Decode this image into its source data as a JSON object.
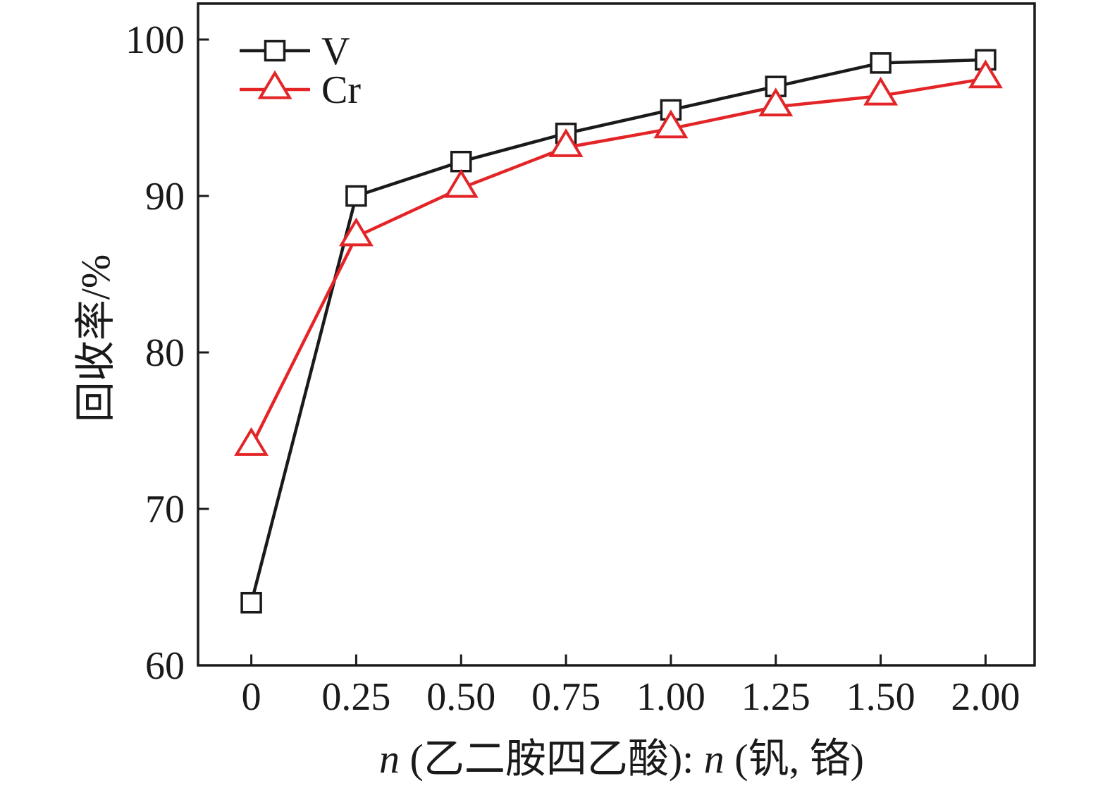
{
  "page": {
    "background": "#ffffff"
  },
  "chart_data": {
    "type": "line",
    "title": "",
    "xlabel": "n (乙二胺四乙酸): n (钒, 铬)",
    "xlabel_parts": [
      {
        "text": "n",
        "italic": true
      },
      {
        "text": " (乙二胺四乙酸): ",
        "italic": false
      },
      {
        "text": "n",
        "italic": true
      },
      {
        "text": " (钒, 铬)",
        "italic": false
      }
    ],
    "ylabel": "回收率/%",
    "categories": [
      "0",
      "0.25",
      "0.50",
      "0.75",
      "1.00",
      "1.25",
      "1.50",
      "2.00"
    ],
    "x_numeric": [
      0,
      0.25,
      0.5,
      0.75,
      1.0,
      1.25,
      1.5,
      2.0
    ],
    "y_ticks": [
      60,
      70,
      80,
      90,
      100
    ],
    "ylim": [
      60,
      102.3
    ],
    "grid": false,
    "legend": {
      "position": "top-left-inside",
      "entries": [
        "V",
        "Cr"
      ]
    },
    "colors": {
      "axis": "#1a1a1a",
      "v_series": "#1a1a1a",
      "cr_series": "#e32528"
    },
    "series": [
      {
        "name": "V",
        "color": "#1a1a1a",
        "marker": "square",
        "values": [
          64,
          90,
          92.2,
          94,
          95.5,
          97,
          98.5,
          98.7
        ]
      },
      {
        "name": "Cr",
        "color": "#e32528",
        "marker": "triangle-up",
        "values": [
          74,
          87.4,
          90.5,
          93.1,
          94.3,
          95.7,
          96.4,
          97.5
        ]
      }
    ]
  }
}
